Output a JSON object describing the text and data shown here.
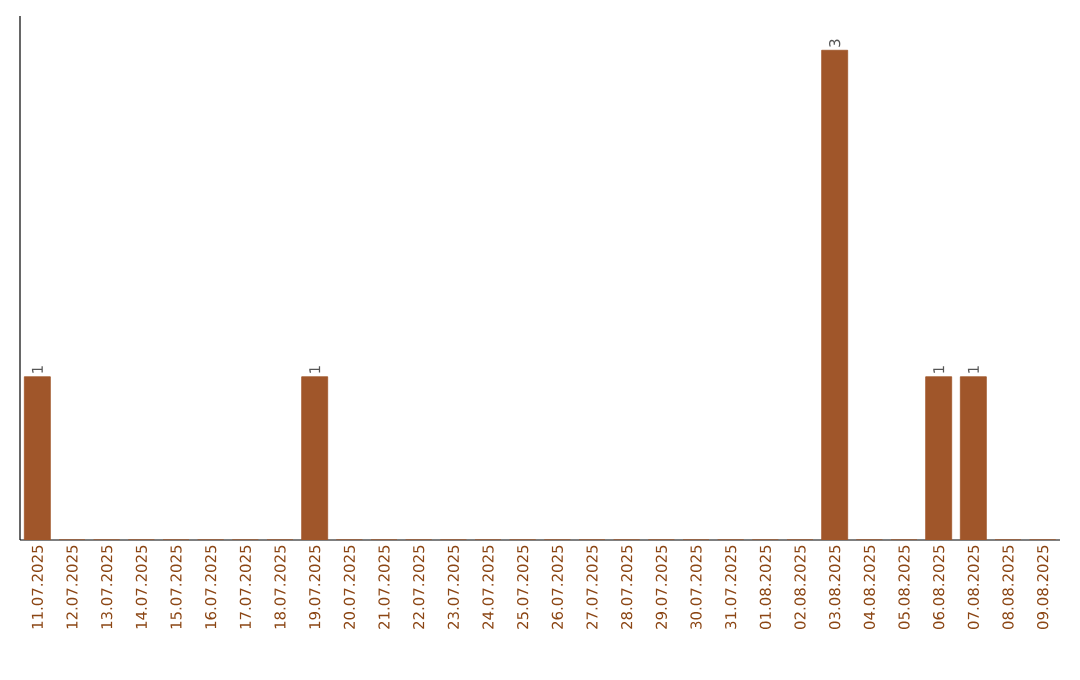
{
  "chart_data": {
    "type": "bar",
    "categories": [
      "11.07.2025",
      "12.07.2025",
      "13.07.2025",
      "14.07.2025",
      "15.07.2025",
      "16.07.2025",
      "17.07.2025",
      "18.07.2025",
      "19.07.2025",
      "20.07.2025",
      "21.07.2025",
      "22.07.2025",
      "23.07.2025",
      "24.07.2025",
      "25.07.2025",
      "26.07.2025",
      "27.07.2025",
      "28.07.2025",
      "29.07.2025",
      "30.07.2025",
      "31.07.2025",
      "01.08.2025",
      "02.08.2025",
      "03.08.2025",
      "04.08.2025",
      "05.08.2025",
      "06.08.2025",
      "07.08.2025",
      "08.08.2025",
      "09.08.2025"
    ],
    "values": [
      1,
      0,
      0,
      0,
      0,
      0,
      0,
      0,
      1,
      0,
      0,
      0,
      0,
      0,
      0,
      0,
      0,
      0,
      0,
      0,
      0,
      0,
      0,
      3,
      0,
      0,
      1,
      1,
      0,
      0
    ],
    "value_labels": [
      "1",
      null,
      null,
      null,
      null,
      null,
      null,
      null,
      "1",
      null,
      null,
      null,
      null,
      null,
      null,
      null,
      null,
      null,
      null,
      null,
      null,
      null,
      null,
      "3",
      null,
      null,
      "1",
      "1",
      null,
      null
    ],
    "color": "#a0562a"
  }
}
